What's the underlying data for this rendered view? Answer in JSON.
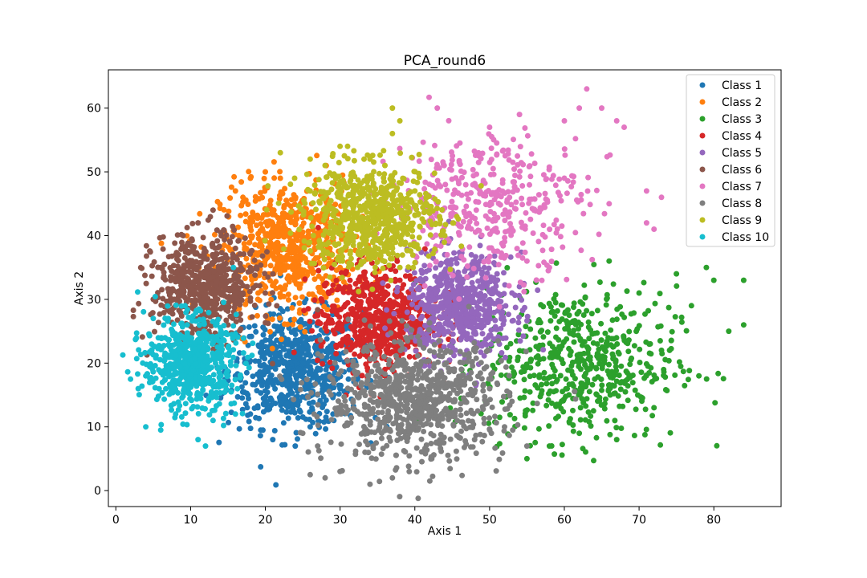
{
  "chart_data": {
    "type": "scatter",
    "title": "PCA_round6",
    "xlabel": "Axis 1",
    "ylabel": "Axis 2",
    "xlim": [
      -1,
      89
    ],
    "ylim": [
      -2.5,
      66
    ],
    "xticks": [
      0,
      10,
      20,
      30,
      40,
      50,
      60,
      70,
      80
    ],
    "yticks": [
      0,
      10,
      20,
      30,
      40,
      50,
      60
    ],
    "grid": false,
    "legend_position": "top-right",
    "series": [
      {
        "name": "Class 1",
        "color": "#1f77b4",
        "center": [
          24,
          19
        ],
        "spread": [
          4.5,
          4.5
        ],
        "count": 650,
        "points": [
          [
            21,
            8
          ],
          [
            24,
            7
          ],
          [
            26,
            10
          ],
          [
            18,
            12
          ],
          [
            27,
            15
          ],
          [
            30,
            16
          ],
          [
            16,
            18
          ],
          [
            22,
            27
          ],
          [
            25,
            26
          ],
          [
            19,
            13
          ]
        ]
      },
      {
        "name": "Class 2",
        "color": "#ff7f0e",
        "center": [
          23,
          38
        ],
        "spread": [
          4.5,
          5
        ],
        "count": 650,
        "points": [
          [
            16,
            47
          ],
          [
            18,
            49
          ],
          [
            20,
            50
          ],
          [
            22,
            49
          ],
          [
            17,
            46
          ],
          [
            28,
            42
          ],
          [
            30,
            35
          ],
          [
            19,
            30
          ]
        ]
      },
      {
        "name": "Class 3",
        "color": "#2ca02c",
        "center": [
          62,
          20
        ],
        "spread": [
          6.5,
          6
        ],
        "count": 550,
        "points": [
          [
            84,
            33
          ],
          [
            84,
            26
          ],
          [
            82,
            25
          ],
          [
            80,
            33
          ],
          [
            79,
            35
          ],
          [
            77,
            29
          ],
          [
            78,
            18
          ],
          [
            75,
            34
          ],
          [
            72,
            13
          ],
          [
            55,
            5
          ],
          [
            58,
            7
          ],
          [
            62,
            9
          ],
          [
            67,
            8
          ],
          [
            70,
            31
          ],
          [
            73,
            22
          ],
          [
            66,
            36
          ]
        ]
      },
      {
        "name": "Class 4",
        "color": "#d62728",
        "center": [
          35,
          27
        ],
        "spread": [
          4,
          4
        ],
        "count": 650,
        "points": [
          [
            27,
            28
          ],
          [
            30,
            23
          ],
          [
            36,
            19
          ],
          [
            40,
            23
          ],
          [
            42,
            30
          ],
          [
            38,
            33
          ],
          [
            33,
            32
          ]
        ]
      },
      {
        "name": "Class 5",
        "color": "#9467bd",
        "center": [
          46,
          29
        ],
        "spread": [
          3.5,
          4
        ],
        "count": 600,
        "points": [
          [
            44,
            37
          ],
          [
            48,
            36
          ],
          [
            51,
            34
          ],
          [
            53,
            31
          ],
          [
            50,
            22
          ],
          [
            44,
            20
          ],
          [
            40,
            24
          ],
          [
            40,
            30
          ],
          [
            54,
            32
          ]
        ]
      },
      {
        "name": "Class 6",
        "color": "#8c564b",
        "center": [
          12,
          32
        ],
        "spread": [
          3.5,
          4
        ],
        "count": 600,
        "points": [
          [
            13,
            44
          ],
          [
            11,
            42
          ],
          [
            9,
            40
          ],
          [
            8,
            37
          ],
          [
            6,
            35
          ],
          [
            5,
            30
          ],
          [
            16,
            38
          ],
          [
            18,
            35
          ],
          [
            15,
            26
          ],
          [
            20,
            31
          ]
        ]
      },
      {
        "name": "Class 7",
        "color": "#e377c2",
        "center": [
          50,
          45
        ],
        "spread": [
          6.5,
          5.5
        ],
        "count": 400,
        "points": [
          [
            63,
            63
          ],
          [
            62,
            60
          ],
          [
            65,
            60
          ],
          [
            60,
            58
          ],
          [
            67,
            58
          ],
          [
            68,
            57
          ],
          [
            54,
            59
          ],
          [
            50,
            57
          ],
          [
            43,
            60
          ],
          [
            71,
            47
          ],
          [
            73,
            46
          ],
          [
            71,
            42
          ],
          [
            72,
            41
          ],
          [
            66,
            45
          ],
          [
            60,
            49
          ],
          [
            58,
            35
          ],
          [
            55,
            36
          ]
        ]
      },
      {
        "name": "Class 8",
        "color": "#7f7f7f",
        "center": [
          40,
          14
        ],
        "spread": [
          6,
          4.5
        ],
        "count": 800,
        "points": [
          [
            34,
            1
          ],
          [
            37,
            2
          ],
          [
            42,
            1.5
          ],
          [
            26,
            2.5
          ],
          [
            28,
            2
          ],
          [
            30,
            3
          ],
          [
            25,
            9
          ],
          [
            27,
            7
          ],
          [
            48,
            8
          ],
          [
            52,
            10
          ],
          [
            55,
            7
          ],
          [
            33,
            12
          ],
          [
            45,
            19
          ],
          [
            50,
            16
          ],
          [
            53,
            14
          ]
        ]
      },
      {
        "name": "Class 9",
        "color": "#bcbd22",
        "center": [
          34,
          43
        ],
        "spread": [
          4.5,
          4
        ],
        "count": 700,
        "points": [
          [
            37,
            60
          ],
          [
            38,
            58
          ],
          [
            37,
            56
          ],
          [
            31,
            54
          ],
          [
            30,
            54
          ],
          [
            22,
            53
          ],
          [
            26,
            52
          ],
          [
            28,
            51
          ],
          [
            34,
            52
          ],
          [
            36,
            51
          ],
          [
            40,
            47
          ],
          [
            42,
            44
          ],
          [
            44,
            40
          ],
          [
            30,
            36
          ],
          [
            38,
            35
          ],
          [
            26,
            47
          ]
        ]
      },
      {
        "name": "Class 10",
        "color": "#17becf",
        "center": [
          10,
          20
        ],
        "spread": [
          3,
          3.5
        ],
        "count": 600,
        "points": [
          [
            4,
            10
          ],
          [
            6,
            9.5
          ],
          [
            11,
            8
          ],
          [
            12,
            7
          ],
          [
            3,
            16
          ],
          [
            4,
            18
          ],
          [
            5,
            27
          ],
          [
            7,
            27
          ],
          [
            14,
            21
          ],
          [
            15,
            18
          ],
          [
            8,
            12
          ],
          [
            13,
            11
          ],
          [
            16,
            12
          ]
        ]
      }
    ]
  }
}
